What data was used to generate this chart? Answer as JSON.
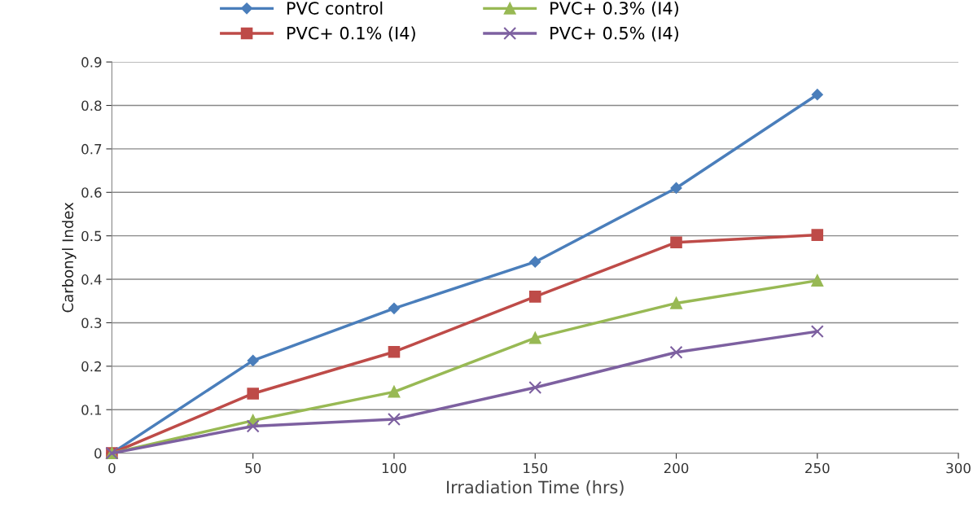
{
  "chart_data": {
    "type": "line",
    "xlabel": "Irradiation Time (hrs)",
    "ylabel": "Carbonyl Index",
    "x": [
      0,
      50,
      100,
      150,
      200,
      250
    ],
    "series": [
      {
        "name": "PVC control",
        "color": "#4a7ebb",
        "marker": "diamond",
        "values": [
          0,
          0.213,
          0.333,
          0.44,
          0.61,
          0.825
        ]
      },
      {
        "name": "PVC+ 0.1% (I4)",
        "color": "#be4b48",
        "marker": "square",
        "values": [
          0,
          0.137,
          0.233,
          0.36,
          0.485,
          0.502
        ]
      },
      {
        "name": "PVC+ 0.3% (I4)",
        "color": "#98b954",
        "marker": "triangle",
        "values": [
          0,
          0.075,
          0.141,
          0.265,
          0.345,
          0.397
        ]
      },
      {
        "name": "PVC+ 0.5% (I4)",
        "color": "#7d60a0",
        "marker": "cross",
        "values": [
          0,
          0.062,
          0.078,
          0.151,
          0.232,
          0.28
        ]
      }
    ],
    "xlim": [
      0,
      300
    ],
    "xticks": [
      0,
      50,
      100,
      150,
      200,
      250,
      300
    ],
    "ylim": [
      0,
      0.9
    ],
    "yticks": [
      0,
      0.1,
      0.2,
      0.3,
      0.4,
      0.5,
      0.6,
      0.7,
      0.8,
      0.9
    ],
    "grid": "y",
    "legend": "top",
    "line_style": "solid"
  }
}
